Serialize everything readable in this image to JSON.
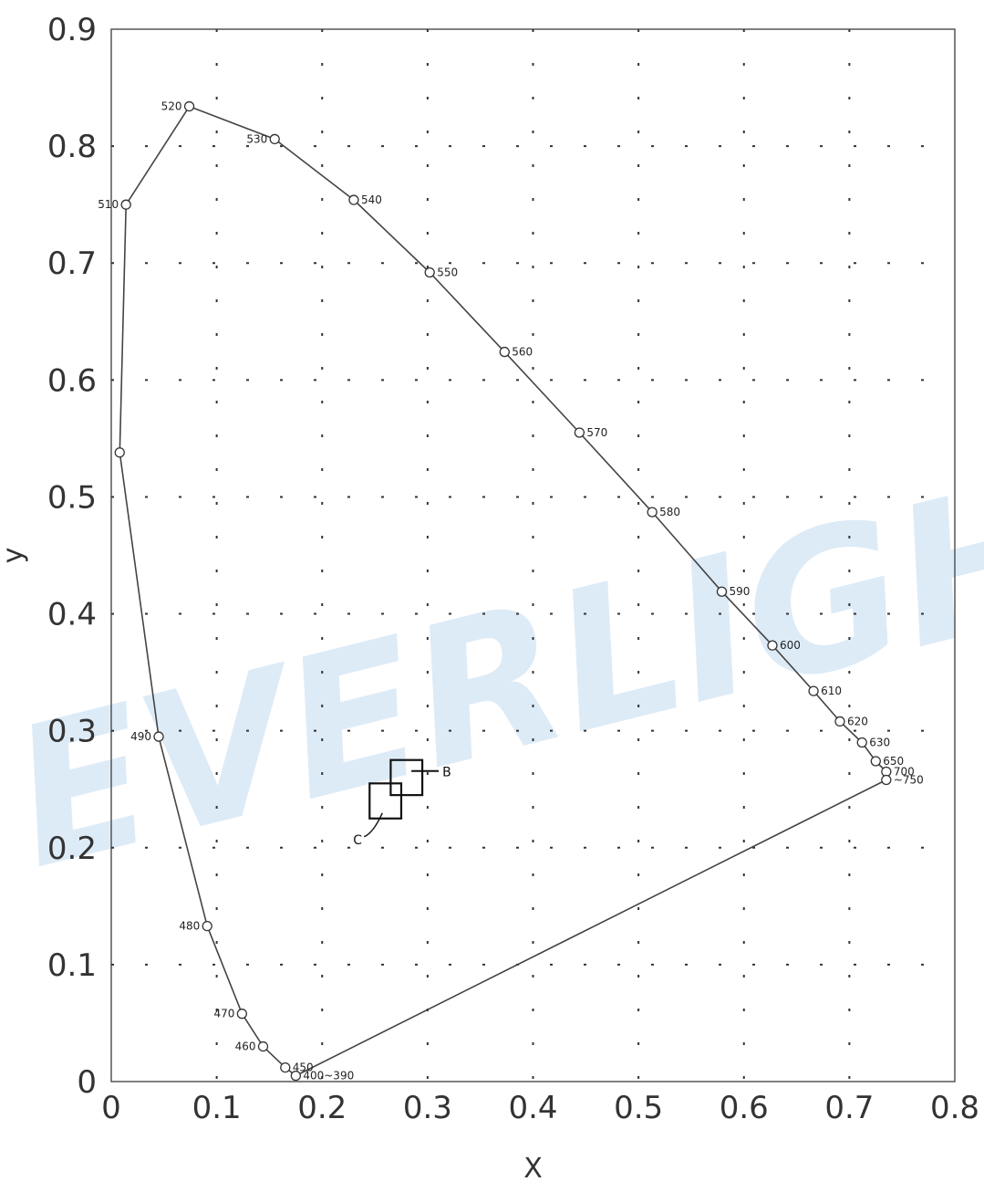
{
  "chart_data": {
    "type": "scatter",
    "title": "",
    "xlabel": "X",
    "ylabel": "y",
    "xlim": [
      0,
      0.8
    ],
    "ylim": [
      0,
      0.9
    ],
    "grid": true,
    "x_ticks": [
      0,
      0.1,
      0.2,
      0.3,
      0.4,
      0.5,
      0.6,
      0.7,
      0.8
    ],
    "x_tick_labels": [
      "0",
      "0.1",
      "0.2",
      "0.3",
      "0.4",
      "0.5",
      "0.6",
      "0.7",
      "0.8"
    ],
    "y_ticks": [
      0,
      0.1,
      0.2,
      0.3,
      0.4,
      0.5,
      0.6,
      0.7,
      0.8,
      0.9
    ],
    "y_tick_labels": [
      "0",
      "0.1",
      "0.2",
      "0.3",
      "0.4",
      "0.5",
      "0.6",
      "0.7",
      "0.8",
      "0.9"
    ],
    "locus": [
      {
        "x": 0.175,
        "y": 0.005,
        "label": "400~390"
      },
      {
        "x": 0.165,
        "y": 0.012,
        "label": "450"
      },
      {
        "x": 0.144,
        "y": 0.03,
        "label": "460"
      },
      {
        "x": 0.124,
        "y": 0.058,
        "label": "470"
      },
      {
        "x": 0.091,
        "y": 0.133,
        "label": "480"
      },
      {
        "x": 0.045,
        "y": 0.295,
        "label": "490"
      },
      {
        "x": 0.008,
        "y": 0.538,
        "label": ""
      },
      {
        "x": 0.014,
        "y": 0.75,
        "label": "510"
      },
      {
        "x": 0.074,
        "y": 0.834,
        "label": "520"
      },
      {
        "x": 0.155,
        "y": 0.806,
        "label": "530"
      },
      {
        "x": 0.23,
        "y": 0.754,
        "label": "540"
      },
      {
        "x": 0.302,
        "y": 0.692,
        "label": "550"
      },
      {
        "x": 0.373,
        "y": 0.624,
        "label": "560"
      },
      {
        "x": 0.444,
        "y": 0.555,
        "label": "570"
      },
      {
        "x": 0.513,
        "y": 0.487,
        "label": "580"
      },
      {
        "x": 0.579,
        "y": 0.419,
        "label": "590"
      },
      {
        "x": 0.627,
        "y": 0.373,
        "label": "600"
      },
      {
        "x": 0.666,
        "y": 0.334,
        "label": "610"
      },
      {
        "x": 0.691,
        "y": 0.308,
        "label": "620"
      },
      {
        "x": 0.712,
        "y": 0.29,
        "label": "630"
      },
      {
        "x": 0.725,
        "y": 0.274,
        "label": "650"
      },
      {
        "x": 0.735,
        "y": 0.265,
        "label": "700"
      },
      {
        "x": 0.735,
        "y": 0.258,
        "label": "~750"
      }
    ],
    "regions": [
      {
        "label": "B",
        "x_range": [
          0.265,
          0.295
        ],
        "y_range": [
          0.245,
          0.275
        ]
      },
      {
        "label": "C",
        "x_range": [
          0.245,
          0.275
        ],
        "y_range": [
          0.225,
          0.255
        ]
      }
    ],
    "watermark": "EVERLIGHT"
  }
}
